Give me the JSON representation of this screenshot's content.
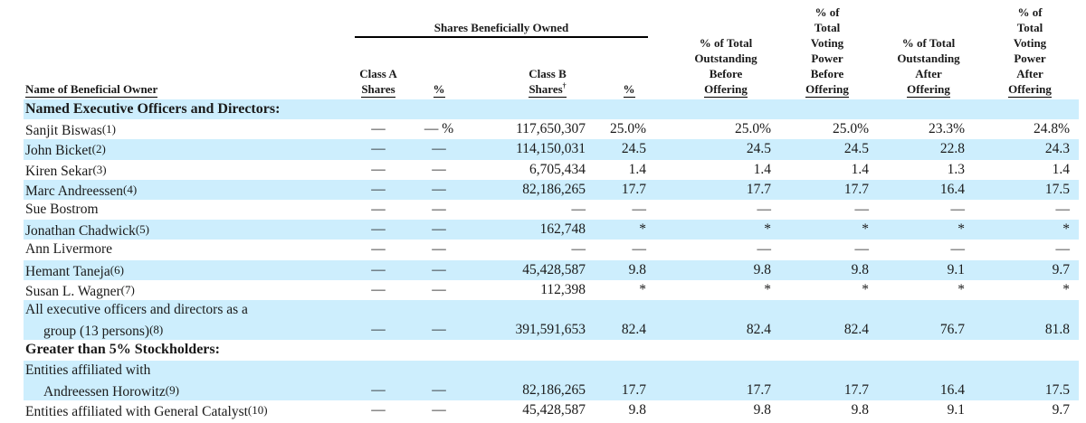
{
  "headers": {
    "beneficially_owned": "Shares Beneficially Owned",
    "name": "Name of Beneficial Owner",
    "class_a_line1": "Class A",
    "class_a_line2": "Shares",
    "pct_a": "%",
    "class_b_line1": "Class B",
    "class_b_line2": "Shares",
    "class_b_mark": "†",
    "pct_b": "%",
    "tob": [
      "% of Total",
      "Outstanding",
      "Before",
      "Offering"
    ],
    "tvb": [
      "% of",
      "Total",
      "Voting",
      "Power",
      "Before",
      "Offering"
    ],
    "toa": [
      "% of Total",
      "Outstanding",
      "After",
      "Offering"
    ],
    "tva": [
      "% of",
      "Total",
      "Voting",
      "Power",
      "After",
      "Offering"
    ]
  },
  "rows": [
    {
      "type": "section",
      "label": "Named Executive Officers and Directors:",
      "shade": true
    },
    {
      "type": "data",
      "name": "Sanjit Biswas",
      "fn": "(1)",
      "class_a": "—",
      "pct_a": "— %",
      "class_b": "117,650,307",
      "pct_b": "25.0%",
      "tob": "25.0%",
      "tvb": "25.0%",
      "toa": "23.3%",
      "tva": "24.8%",
      "shade": false
    },
    {
      "type": "data",
      "name": "John Bicket",
      "fn": "(2)",
      "class_a": "—",
      "pct_a": "—",
      "class_b": "114,150,031",
      "pct_b": "24.5",
      "tob": "24.5",
      "tvb": "24.5",
      "toa": "22.8",
      "tva": "24.3",
      "shade": true
    },
    {
      "type": "data",
      "name": "Kiren Sekar",
      "fn": "(3)",
      "class_a": "—",
      "pct_a": "—",
      "class_b": "6,705,434",
      "pct_b": "1.4",
      "tob": "1.4",
      "tvb": "1.4",
      "toa": "1.3",
      "tva": "1.4",
      "shade": false
    },
    {
      "type": "data",
      "name": "Marc Andreessen",
      "fn": "(4)",
      "class_a": "—",
      "pct_a": "—",
      "class_b": "82,186,265",
      "pct_b": "17.7",
      "tob": "17.7",
      "tvb": "17.7",
      "toa": "16.4",
      "tva": "17.5",
      "shade": true
    },
    {
      "type": "data",
      "name": "Sue Bostrom",
      "fn": "",
      "class_a": "—",
      "pct_a": "—",
      "class_b": "—",
      "pct_b": "—",
      "tob": "—",
      "tvb": "—",
      "toa": "—",
      "tva": "—",
      "shade": false
    },
    {
      "type": "data",
      "name": "Jonathan Chadwick",
      "fn": "(5)",
      "class_a": "—",
      "pct_a": "—",
      "class_b": "162,748",
      "pct_b": "*",
      "tob": "*",
      "tvb": "*",
      "toa": "*",
      "tva": "*",
      "shade": true
    },
    {
      "type": "data",
      "name": "Ann Livermore",
      "fn": "",
      "class_a": "—",
      "pct_a": "—",
      "class_b": "—",
      "pct_b": "—",
      "tob": "—",
      "tvb": "—",
      "toa": "—",
      "tva": "—",
      "shade": false
    },
    {
      "type": "data",
      "name": "Hemant Taneja",
      "fn": "(6)",
      "class_a": "—",
      "pct_a": "—",
      "class_b": "45,428,587",
      "pct_b": "9.8",
      "tob": "9.8",
      "tvb": "9.8",
      "toa": "9.1",
      "tva": "9.7",
      "shade": true
    },
    {
      "type": "data",
      "name": "Susan L. Wagner",
      "fn": "(7)",
      "class_a": "—",
      "pct_a": "—",
      "class_b": "112,398",
      "pct_b": "*",
      "tob": "*",
      "tvb": "*",
      "toa": "*",
      "tva": "*",
      "shade": false
    },
    {
      "type": "label",
      "name": "All executive officers and directors as a",
      "shade": true
    },
    {
      "type": "data",
      "name": "group (13 persons)",
      "fn": "(8)",
      "indent": true,
      "class_a": "—",
      "pct_a": "—",
      "class_b": "391,591,653",
      "pct_b": "82.4",
      "tob": "82.4",
      "tvb": "82.4",
      "toa": "76.7",
      "tva": "81.8",
      "shade": true
    },
    {
      "type": "section",
      "label": "Greater than 5% Stockholders:",
      "shade": false
    },
    {
      "type": "label",
      "name": "Entities affiliated with",
      "shade": true
    },
    {
      "type": "data",
      "name": "Andreessen Horowitz",
      "fn": "(9)",
      "indent": true,
      "class_a": "—",
      "pct_a": "—",
      "class_b": "82,186,265",
      "pct_b": "17.7",
      "tob": "17.7",
      "tvb": "17.7",
      "toa": "16.4",
      "tva": "17.5",
      "shade": true
    },
    {
      "type": "data",
      "name": "Entities affiliated with General Catalyst",
      "fn": "(10)",
      "class_a": "—",
      "pct_a": "—",
      "class_b": "45,428,587",
      "pct_b": "9.8",
      "tob": "9.8",
      "tvb": "9.8",
      "toa": "9.1",
      "tva": "9.7",
      "shade": false
    }
  ]
}
